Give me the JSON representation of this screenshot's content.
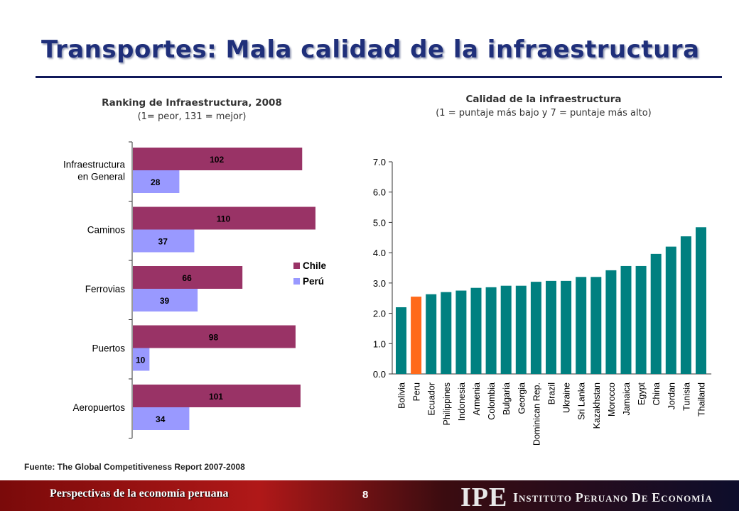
{
  "slide": {
    "title": "Transportes: Mala calidad de la infraestructura",
    "source": "Fuente: The Global Competitiveness Report 2007-2008",
    "page_number": "8"
  },
  "footer": {
    "left_text": "Perspectivas de la economía peruana",
    "logo": "IPE",
    "org_name": "Instituto Peruano de Economía"
  },
  "chart_data": [
    {
      "type": "bar",
      "orientation": "horizontal",
      "title": "Ranking de Infraestructura,  2008",
      "subtitle": "(1= peor, 131 = mejor)",
      "categories": [
        "Infraestructura en General",
        "Caminos",
        "Ferrovias",
        "Puertos",
        "Aeropuertos"
      ],
      "category_lines": [
        [
          "Infraestructura",
          "en General"
        ],
        [
          "Caminos"
        ],
        [
          "Ferrovias"
        ],
        [
          "Puertos"
        ],
        [
          "Aeropuertos"
        ]
      ],
      "series": [
        {
          "name": "Chile",
          "color": "#993366",
          "values": [
            102,
            110,
            66,
            98,
            101
          ]
        },
        {
          "name": "Perú",
          "color": "#9999ff",
          "values": [
            28,
            37,
            39,
            10,
            34
          ]
        }
      ],
      "xlim": [
        0,
        131
      ],
      "legend": "right",
      "data_labels": true
    },
    {
      "type": "bar",
      "title": "Calidad de la infraestructura",
      "subtitle": "(1 = puntaje más bajo y 7 = puntaje más alto)",
      "categories": [
        "Bolivia",
        "Peru",
        "Ecuador",
        "Philippines",
        "Indonesia",
        "Armenia",
        "Colombia",
        "Bulgaria",
        "Georgia",
        "Dominican Rep.",
        "Brazil",
        "Ukraine",
        "Sri Lanka",
        "Kazakhstan",
        "Morocco",
        "Jamaica",
        "Egypt",
        "China",
        "Jordan",
        "Tunisia",
        "Thailand"
      ],
      "values": [
        2.2,
        2.55,
        2.63,
        2.7,
        2.75,
        2.84,
        2.86,
        2.91,
        2.91,
        3.04,
        3.07,
        3.07,
        3.2,
        3.2,
        3.42,
        3.56,
        3.56,
        3.96,
        4.2,
        4.54,
        4.84
      ],
      "ylim": [
        0,
        7
      ],
      "yticks": [
        "0.0",
        "1.0",
        "2.0",
        "3.0",
        "4.0",
        "5.0",
        "6.0",
        "7.0"
      ],
      "color": "#008080",
      "highlight": {
        "category": "Peru",
        "color": "#ff6a1a"
      }
    }
  ]
}
